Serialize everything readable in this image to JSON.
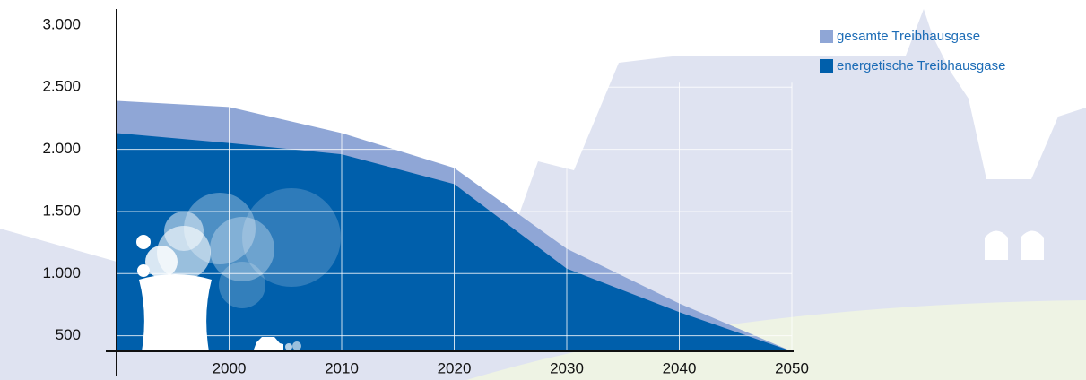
{
  "chart_data": {
    "type": "area",
    "x": [
      1990,
      2000,
      2010,
      2020,
      2030,
      2040,
      2050
    ],
    "series": [
      {
        "name": "gesamte Treibhausgase",
        "color": "#8fa6d6",
        "values": [
          2390,
          2340,
          2130,
          1850,
          1200,
          760,
          375
        ]
      },
      {
        "name": "energetische Treibhausgase",
        "color": "#005fab",
        "values": [
          2130,
          2050,
          1960,
          1720,
          1040,
          690,
          375
        ]
      }
    ],
    "xlim": [
      1990,
      2050
    ],
    "xticks": [
      2000,
      2010,
      2020,
      2030,
      2040,
      2050
    ],
    "ylim": [
      375,
      3100
    ],
    "yticks": [
      {
        "value": 500,
        "label": "500"
      },
      {
        "value": 1000,
        "label": "1.000"
      },
      {
        "value": 1500,
        "label": "1.500"
      },
      {
        "value": 2000,
        "label": "2.000"
      },
      {
        "value": 2500,
        "label": "2.500"
      },
      {
        "value": 3000,
        "label": "3.000"
      }
    ],
    "grid": true,
    "legend": "top-right"
  }
}
